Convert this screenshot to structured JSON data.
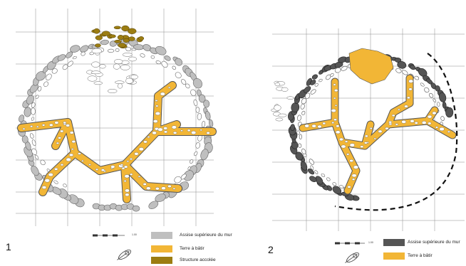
{
  "panels": [
    {
      "number": "1",
      "scale_text": "1.00",
      "colors": {
        "wall": "#bfbfbf",
        "earth": "#f2b636",
        "annex": "#9c7d12"
      },
      "legend": [
        {
          "label": "Assise supérieure du mur",
          "color": "#bfbfbf",
          "icon": "wall-swatch"
        },
        {
          "label": "Terre à bâtir",
          "color": "#f2b636",
          "icon": "earth-swatch"
        },
        {
          "label": "Structure accolée",
          "color": "#9c7d12",
          "icon": "annex-swatch"
        }
      ]
    },
    {
      "number": "2",
      "scale_text": "1.00",
      "colors": {
        "wall": "#555555",
        "earth": "#f2b636"
      },
      "legend": [
        {
          "label": "Assise supérieure du mur",
          "color": "#555555",
          "icon": "wall-swatch"
        },
        {
          "label": "Terre à bâtir",
          "color": "#f2b636",
          "icon": "earth-swatch"
        }
      ]
    }
  ],
  "icons": {
    "north_arrow": "north-arrow-icon"
  }
}
